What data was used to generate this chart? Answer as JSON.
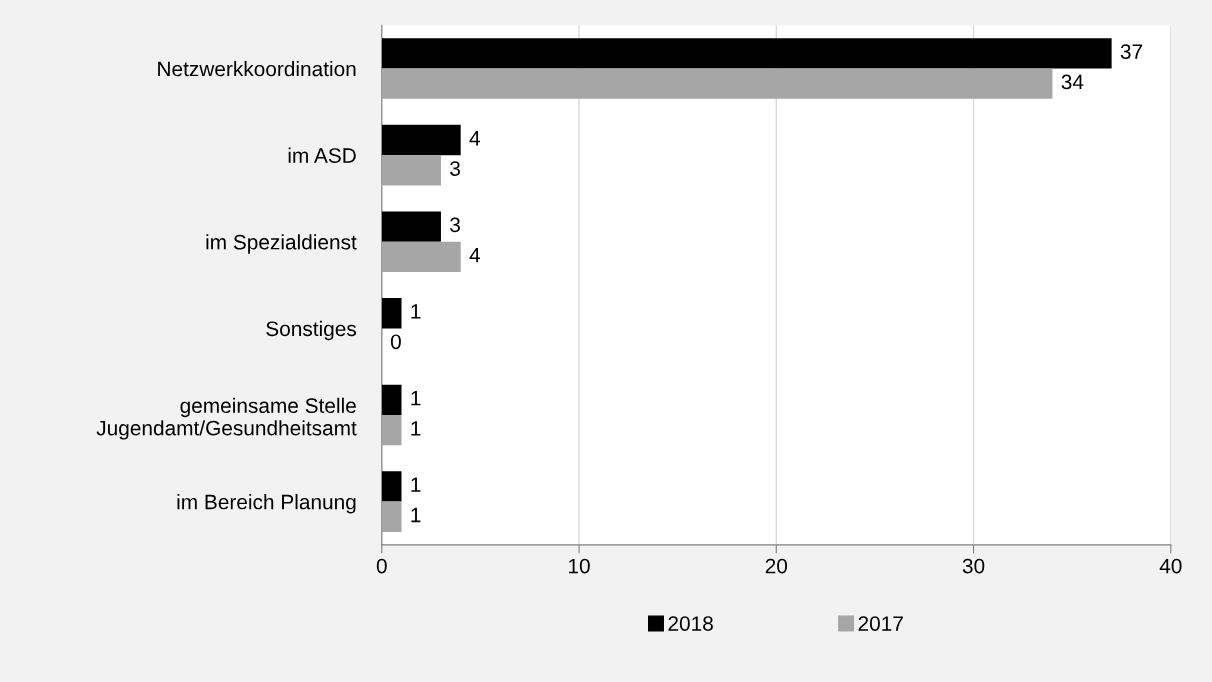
{
  "chart_data": {
    "type": "bar",
    "orientation": "horizontal",
    "categories": [
      "Netzwerkkoordination",
      "im ASD",
      "im Spezialdienst",
      "Sonstiges",
      "gemeinsame Stelle\nJugendamt/Gesundheitsamt",
      "im Bereich Planung"
    ],
    "series": [
      {
        "name": "2018",
        "color": "#000000",
        "values": [
          37,
          4,
          3,
          1,
          1,
          1
        ]
      },
      {
        "name": "2017",
        "color": "#a6a6a6",
        "values": [
          34,
          3,
          4,
          0,
          1,
          1
        ]
      }
    ],
    "xlim": [
      0,
      40
    ],
    "xticks": [
      0,
      10,
      20,
      30,
      40
    ],
    "grid": "x",
    "legend": "bottom",
    "data_labels": true
  }
}
